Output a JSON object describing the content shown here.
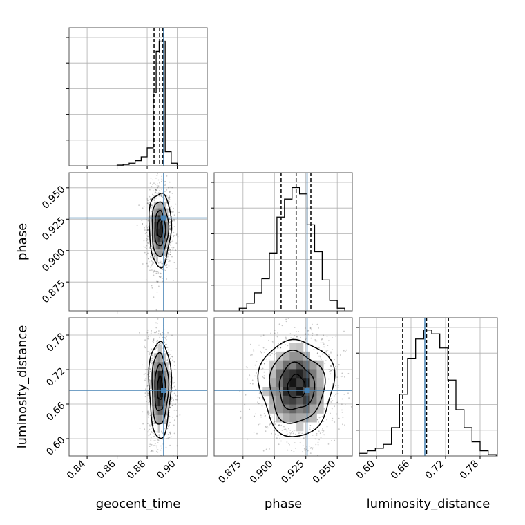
{
  "chart_data": {
    "type": "corner",
    "parameters": [
      {
        "name": "geocent_time",
        "label": "geocent_time",
        "range": [
          0.828,
          0.92
        ],
        "ticks": [
          0.84,
          0.86,
          0.88,
          0.9
        ],
        "tick_labels": [
          "0.84",
          "0.86",
          "0.88",
          "0.90"
        ]
      },
      {
        "name": "phase",
        "label": "phase",
        "range": [
          0.852,
          0.962
        ],
        "ticks": [
          0.875,
          0.9,
          0.925,
          0.95
        ],
        "tick_labels": [
          "0.875",
          "0.900",
          "0.925",
          "0.950"
        ]
      },
      {
        "name": "luminosity_distance",
        "label": "luminosity_distance",
        "range": [
          0.57,
          0.81
        ],
        "ticks": [
          0.6,
          0.66,
          0.72,
          0.78
        ],
        "tick_labels": [
          "0.60",
          "0.66",
          "0.72",
          "0.78"
        ]
      }
    ],
    "truths": [
      0.891,
      0.926,
      0.684
    ],
    "quantiles": [
      [
        0.8846,
        0.8883,
        0.8905
      ],
      [
        0.9053,
        0.9173,
        0.929
      ],
      [
        0.6455,
        0.687,
        0.725
      ]
    ],
    "histograms": [
      {
        "bin_edges": [
          0.86,
          0.864,
          0.868,
          0.872,
          0.876,
          0.88,
          0.884,
          0.886,
          0.888,
          0.89,
          0.892,
          0.896,
          0.9
        ],
        "counts": [
          0.005,
          0.01,
          0.02,
          0.04,
          0.07,
          0.14,
          0.57,
          0.89,
          0.97,
          0.97,
          0.11,
          0.02
        ]
      },
      {
        "bin_edges": [
          0.872,
          0.878,
          0.884,
          0.89,
          0.896,
          0.902,
          0.908,
          0.914,
          0.92,
          0.926,
          0.932,
          0.938,
          0.944,
          0.95,
          0.956
        ],
        "counts": [
          0.02,
          0.06,
          0.14,
          0.25,
          0.45,
          0.73,
          0.87,
          0.96,
          0.91,
          0.67,
          0.46,
          0.24,
          0.08,
          0.02
        ]
      },
      {
        "bin_edges": [
          0.57,
          0.584,
          0.598,
          0.612,
          0.626,
          0.64,
          0.654,
          0.668,
          0.682,
          0.696,
          0.71,
          0.724,
          0.738,
          0.752,
          0.766,
          0.78,
          0.794,
          0.808
        ],
        "counts": [
          0.02,
          0.04,
          0.06,
          0.09,
          0.22,
          0.48,
          0.76,
          0.91,
          0.98,
          0.95,
          0.84,
          0.59,
          0.36,
          0.22,
          0.11,
          0.04,
          0.01
        ]
      }
    ],
    "pairs": [
      {
        "x": 0,
        "y": 1,
        "center": [
          0.8885,
          0.9175
        ],
        "sigma": [
          0.0035,
          0.014
        ],
        "rho": 0.0
      },
      {
        "x": 0,
        "y": 2,
        "center": [
          0.8885,
          0.687
        ],
        "sigma": [
          0.0035,
          0.04
        ],
        "rho": 0.0
      },
      {
        "x": 1,
        "y": 2,
        "center": [
          0.9175,
          0.69
        ],
        "sigma": [
          0.014,
          0.04
        ],
        "rho": 0.0
      }
    ],
    "truth_color": "#4682b4",
    "grid": true
  }
}
